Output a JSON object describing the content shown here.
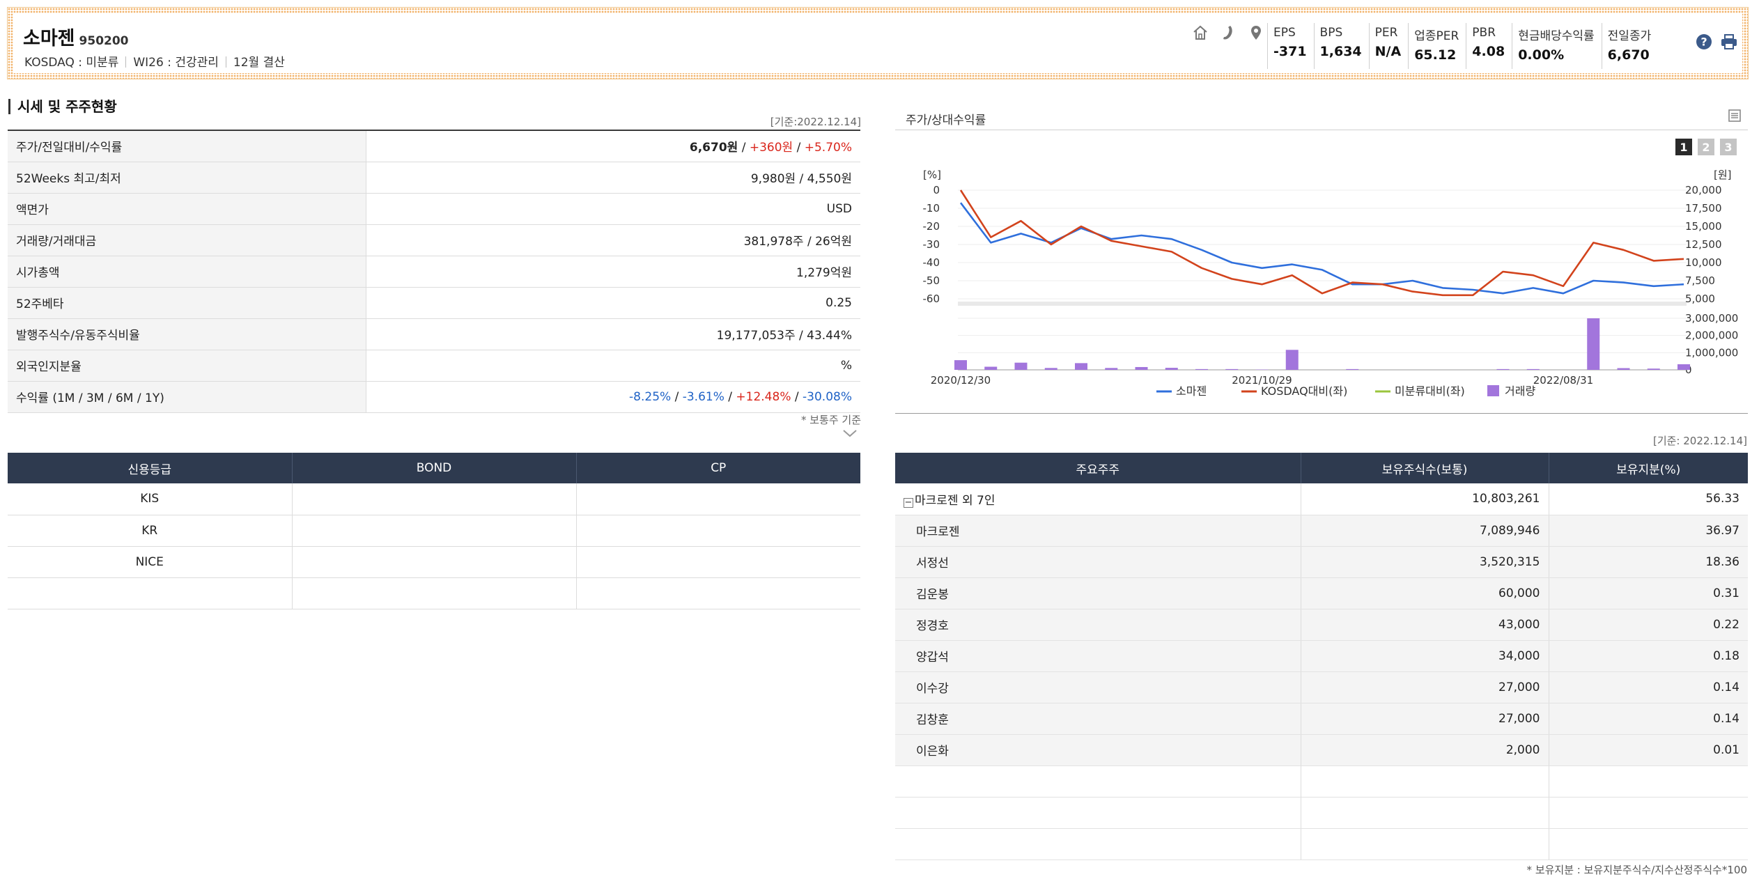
{
  "header": {
    "name": "소마젠",
    "code": "950200",
    "meta": [
      "KOSDAQ : 미분류",
      "WI26 : 건강관리",
      "12월 결산"
    ],
    "icons": [
      "home-icon",
      "phone-icon",
      "location-icon"
    ],
    "metrics": [
      {
        "key": "EPS",
        "value": "-371"
      },
      {
        "key": "BPS",
        "value": "1,634"
      },
      {
        "key": "PER",
        "value": "N/A"
      },
      {
        "key": "업종PER",
        "value": "65.12"
      },
      {
        "key": "PBR",
        "value": "4.08"
      },
      {
        "key": "현금배당수익률",
        "value": "0.00%"
      },
      {
        "key": "전일종가",
        "value": "6,670"
      }
    ]
  },
  "price_section": {
    "title": "시세 및 주주현황",
    "basis": "[기준:2022.12.14]",
    "rows": [
      {
        "key": "주가/전일대비/수익률",
        "parts": [
          {
            "t": "6,670원",
            "c": "b"
          },
          {
            "t": " / ",
            "c": ""
          },
          {
            "t": "+360원",
            "c": "red"
          },
          {
            "t": " / ",
            "c": ""
          },
          {
            "t": "+5.70%",
            "c": "red"
          }
        ]
      },
      {
        "key": "52Weeks 최고/최저",
        "parts": [
          {
            "t": "9,980원 / 4,550원",
            "c": ""
          }
        ]
      },
      {
        "key": "액면가",
        "parts": [
          {
            "t": "USD",
            "c": ""
          }
        ]
      },
      {
        "key": "거래량/거래대금",
        "parts": [
          {
            "t": "381,978주 / 26억원",
            "c": ""
          }
        ]
      },
      {
        "key": "시가총액",
        "parts": [
          {
            "t": "1,279억원",
            "c": ""
          }
        ]
      },
      {
        "key": "52주베타",
        "parts": [
          {
            "t": "0.25",
            "c": ""
          }
        ]
      },
      {
        "key": "발행주식수/유동주식비율",
        "parts": [
          {
            "t": "19,177,053주 / 43.44%",
            "c": ""
          }
        ]
      },
      {
        "key": "외국인지분율",
        "parts": [
          {
            "t": "%",
            "c": ""
          }
        ]
      },
      {
        "key": "수익률 (1M / 3M / 6M / 1Y)",
        "parts": [
          {
            "t": "-8.25%",
            "c": "blue"
          },
          {
            "t": " / ",
            "c": ""
          },
          {
            "t": "-3.61%",
            "c": "blue"
          },
          {
            "t": " / ",
            "c": ""
          },
          {
            "t": "+12.48%",
            "c": "red"
          },
          {
            "t": " / ",
            "c": ""
          },
          {
            "t": "-30.08%",
            "c": "blue"
          }
        ]
      }
    ],
    "note": "* 보통주 기준"
  },
  "credit": {
    "headers": [
      "신용등급",
      "BOND",
      "CP"
    ],
    "rows": [
      [
        "KIS",
        "",
        ""
      ],
      [
        "KR",
        "",
        ""
      ],
      [
        "NICE",
        "",
        ""
      ],
      [
        "",
        "",
        ""
      ]
    ]
  },
  "chart_panel": {
    "title": "주가/상대수익률",
    "tabs": [
      "1",
      "2",
      "3"
    ],
    "active_tab": 0
  },
  "chart_data": {
    "type": "line",
    "left_unit": "[%]",
    "right_unit": "[원]",
    "left_ticks": [
      "0",
      "-10",
      "-20",
      "-30",
      "-40",
      "-50",
      "-60"
    ],
    "right_ticks": [
      "20,000",
      "17,500",
      "15,000",
      "12,500",
      "10,000",
      "7,500",
      "5,000"
    ],
    "ylim_left": [
      -60,
      0
    ],
    "volume_ticks": [
      "3,000,000",
      "2,000,000",
      "1,000,000",
      "0"
    ],
    "ylim_volume": [
      0,
      3300000
    ],
    "x_ticks": [
      {
        "i": 0,
        "label": "2020/12/30"
      },
      {
        "i": 10,
        "label": "2021/10/29"
      },
      {
        "i": 20,
        "label": "2022/08/31"
      }
    ],
    "series": [
      {
        "name": "소마젠",
        "color": "#2f6fdc",
        "values": [
          -7,
          -29,
          -24,
          -29,
          -21,
          -27,
          -25,
          -27,
          -33,
          -40,
          -43,
          -41,
          -44,
          -52,
          -52,
          -50,
          -54,
          -55,
          -57,
          -54,
          -57,
          -50,
          -51,
          -53,
          -52
        ]
      },
      {
        "name": "KOSDAQ대비(좌)",
        "color": "#d2431c",
        "values": [
          0,
          -26,
          -17,
          -30,
          -20,
          -28,
          -31,
          -34,
          -43,
          -49,
          -52,
          -47,
          -57,
          -51,
          -52,
          -56,
          -58,
          -58,
          -45,
          -47,
          -53,
          -29,
          -33,
          -39,
          -38
        ]
      },
      {
        "name": "미분류대비(좌)",
        "color": "#9bc53d",
        "values": []
      }
    ],
    "volume": {
      "name": "거래량",
      "color": "#a275dc",
      "values": [
        620000,
        200000,
        460000,
        120000,
        430000,
        120000,
        180000,
        130000,
        50000,
        50000,
        20000,
        1280000,
        0,
        50000,
        0,
        0,
        0,
        0,
        50000,
        50000,
        0,
        3300000,
        110000,
        80000,
        360000
      ]
    }
  },
  "holders": {
    "basis": "[기준: 2022.12.14]",
    "headers": [
      "주요주주",
      "보유주식수(보통)",
      "보유지분(%)"
    ],
    "group": {
      "name": "마크로젠 외 7인",
      "shares": "10,803,261",
      "pct": "56.33"
    },
    "members": [
      {
        "name": "마크로젠",
        "shares": "7,089,946",
        "pct": "36.97"
      },
      {
        "name": "서정선",
        "shares": "3,520,315",
        "pct": "18.36"
      },
      {
        "name": "김운봉",
        "shares": "60,000",
        "pct": "0.31"
      },
      {
        "name": "정경호",
        "shares": "43,000",
        "pct": "0.22"
      },
      {
        "name": "양갑석",
        "shares": "34,000",
        "pct": "0.18"
      },
      {
        "name": "이수강",
        "shares": "27,000",
        "pct": "0.14"
      },
      {
        "name": "김창훈",
        "shares": "27,000",
        "pct": "0.14"
      },
      {
        "name": "이은화",
        "shares": "2,000",
        "pct": "0.01"
      }
    ],
    "empty_rows": 3,
    "note": "* 보유지분 : 보유지분주식수/지수산정주식수*100"
  }
}
